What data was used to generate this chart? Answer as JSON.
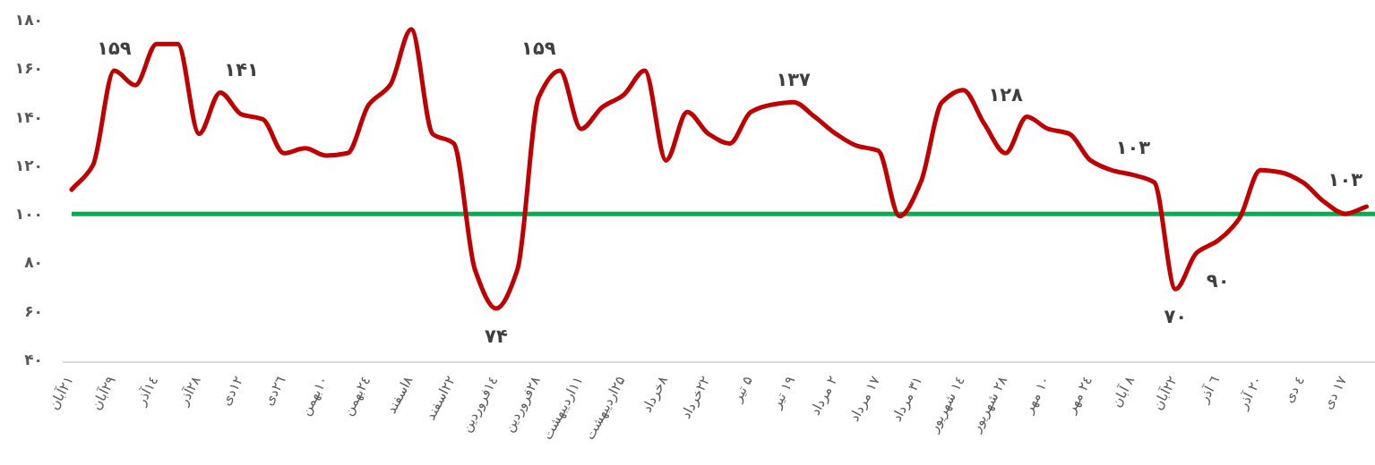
{
  "chart_data": {
    "type": "line",
    "categories": [
      "۲۱آبان",
      null,
      "۲۹آبان",
      null,
      "۱٤آذر",
      null,
      "۲۸آذر",
      null,
      "۱۲دی",
      null,
      "۲٦دی",
      null,
      "۱۰بهمن",
      null,
      "۲٤بهمن",
      null,
      "۸اسفند",
      null,
      "۲۲اسفند",
      null,
      "۱٤فروردین",
      null,
      "۲۸فروردین",
      null,
      "۱۱اردیبهشت",
      null,
      "۲۵اردیبهشت",
      null,
      "۸خرداد",
      null,
      "۲۲خرداد",
      null,
      "۵ تیر",
      null,
      "۱۹ تیر",
      null,
      "۲ مرداد",
      null,
      "۱۷ مرداد",
      null,
      "۳۱ مرداد",
      null,
      "۱٤ شهریور",
      null,
      "۲۸ شهریور",
      null,
      "۱۰ مهر",
      null,
      "۲٤ مهر",
      null,
      "۸ آبان",
      null,
      "۲۲آبان",
      null,
      "٦ آذر",
      null,
      "۲۰ آذر",
      null,
      "٤ دی",
      null,
      "۱۷ دی",
      null
    ],
    "series": [
      {
        "color": "#c00000",
        "values": [
          110,
          120,
          159,
          153,
          170,
          170,
          133,
          150,
          141,
          139,
          125,
          127,
          124,
          125,
          145,
          153,
          176,
          133,
          129,
          77,
          61,
          77,
          148,
          159,
          135,
          144,
          149,
          159,
          122,
          142,
          133,
          129,
          142,
          145,
          146,
          140,
          133,
          128,
          126,
          99,
          113,
          146,
          151,
          137,
          125,
          140,
          135,
          133,
          122,
          118,
          116,
          113,
          69,
          84,
          89,
          98,
          118,
          117,
          113,
          105,
          100,
          103
        ]
      }
    ],
    "ylim": [
      40,
      180
    ],
    "yticks": [
      {
        "value": 40,
        "label": "۴۰"
      },
      {
        "value": 60,
        "label": "۶۰"
      },
      {
        "value": 80,
        "label": "۸۰"
      },
      {
        "value": 100,
        "label": "۱۰۰"
      },
      {
        "value": 120,
        "label": "۱۲۰"
      },
      {
        "value": 140,
        "label": "۱۴۰"
      },
      {
        "value": 160,
        "label": "۱۶۰"
      },
      {
        "value": 180,
        "label": "۱۸۰"
      }
    ],
    "ref_lines": [
      {
        "axis": "y",
        "value": 100,
        "color": "#00b050"
      }
    ],
    "annotations": [
      {
        "text": "۱۵۹",
        "x": "۲۹آبان",
        "y": 159
      },
      {
        "text": "۱۴۱",
        "x": "۱۲دی",
        "y": 141
      },
      {
        "text": "۷۴",
        "x": "۱٤فروردین",
        "y": 61
      },
      {
        "text": "۱۵۹",
        "x": "۲۸فروردین",
        "y": 148
      },
      {
        "text": "۱۳۷",
        "x": "۱۹ تیر",
        "y": 146
      },
      {
        "text": "۱۲۸",
        "x": "۲۸ شهریور",
        "y": 125
      },
      {
        "text": "۱۰۳",
        "x": "۸ آبان",
        "y": 116
      },
      {
        "text": "۷۰",
        "x": "۲۲آبان",
        "y": 69
      },
      {
        "text": "۹۰",
        "x": "٦ آذر",
        "y": 89
      },
      {
        "text": "۱۰۳",
        "x": "۱۷ دی",
        "y": 100
      }
    ],
    "line_style": "solid"
  }
}
